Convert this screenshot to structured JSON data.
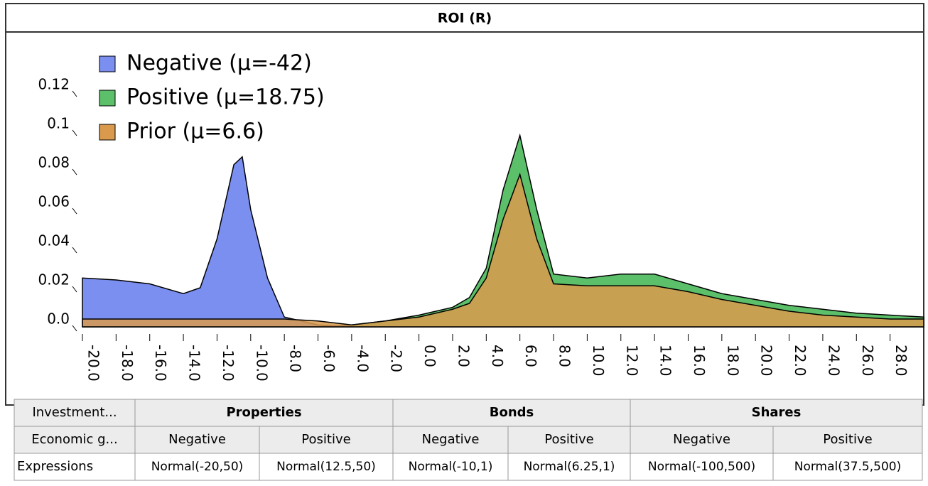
{
  "chart_data": {
    "type": "area",
    "title": "ROI (R)",
    "x": [
      -20,
      -18,
      -16,
      -14,
      -13,
      -12,
      -11,
      -10.5,
      -10,
      -9,
      -8,
      -6,
      -4,
      -2,
      0,
      2,
      3,
      4,
      5,
      6,
      7,
      8,
      10,
      12,
      14,
      16,
      18,
      20,
      22,
      24,
      26,
      28,
      30
    ],
    "series": [
      {
        "name": "Negative (μ=-42)",
        "color": "#7b8ff0",
        "values": [
          0.025,
          0.024,
          0.022,
          0.017,
          0.02,
          0.045,
          0.083,
          0.087,
          0.06,
          0.025,
          0.005,
          0.001,
          0,
          0,
          0,
          0,
          0,
          0,
          0,
          0,
          0,
          0,
          0,
          0,
          0,
          0,
          0,
          0,
          0,
          0,
          0,
          0,
          0
        ]
      },
      {
        "name": "Positive (μ=18.75)",
        "color": "#5cbf6a",
        "values": [
          0,
          0,
          0,
          0,
          0,
          0,
          0,
          0,
          0,
          0,
          0,
          0,
          0.001,
          0.003,
          0.006,
          0.01,
          0.015,
          0.03,
          0.07,
          0.098,
          0.06,
          0.027,
          0.025,
          0.027,
          0.027,
          0.022,
          0.017,
          0.014,
          0.011,
          0.009,
          0.007,
          0.006,
          0.005
        ]
      },
      {
        "name": "Prior (μ=6.6)",
        "color": "#d99a4e",
        "values": [
          0.004,
          0.004,
          0.004,
          0.004,
          0.004,
          0.004,
          0.004,
          0.004,
          0.004,
          0.004,
          0.004,
          0.003,
          0.001,
          0.003,
          0.005,
          0.009,
          0.012,
          0.025,
          0.055,
          0.078,
          0.045,
          0.022,
          0.021,
          0.021,
          0.021,
          0.018,
          0.014,
          0.011,
          0.008,
          0.006,
          0.005,
          0.004,
          0.004
        ]
      }
    ],
    "xlim": [
      -20,
      30
    ],
    "ylim": [
      0,
      0.15
    ],
    "xticks": [
      {
        "value": -20,
        "label": "-20.0"
      },
      {
        "value": -18,
        "label": "-18.0"
      },
      {
        "value": -16,
        "label": "-16.0"
      },
      {
        "value": -14,
        "label": "-14.0"
      },
      {
        "value": -12,
        "label": "-12.0"
      },
      {
        "value": -10,
        "label": "-10.0"
      },
      {
        "value": -8,
        "label": "-8.0"
      },
      {
        "value": -6,
        "label": "-6.0"
      },
      {
        "value": -4,
        "label": "-4.0"
      },
      {
        "value": -2,
        "label": "-2.0"
      },
      {
        "value": 0,
        "label": "0.0"
      },
      {
        "value": 2,
        "label": "2.0"
      },
      {
        "value": 4,
        "label": "4.0"
      },
      {
        "value": 6,
        "label": "6.0"
      },
      {
        "value": 8,
        "label": "8.0"
      },
      {
        "value": 10,
        "label": "10.0"
      },
      {
        "value": 12,
        "label": "12.0"
      },
      {
        "value": 14,
        "label": "14.0"
      },
      {
        "value": 16,
        "label": "16.0"
      },
      {
        "value": 18,
        "label": "18.0"
      },
      {
        "value": 20,
        "label": "20.0"
      },
      {
        "value": 22,
        "label": "22.0"
      },
      {
        "value": 24,
        "label": "24.0"
      },
      {
        "value": 26,
        "label": "26.0"
      },
      {
        "value": 28,
        "label": "28.0"
      }
    ],
    "yticks": [
      {
        "value": 0,
        "label": "0.0"
      },
      0.02,
      0.04,
      0.06,
      0.08,
      0.1,
      0.12
    ],
    "legend": "upper left"
  },
  "table": {
    "rows": [
      [
        {
          "text": "Investment...",
          "span": 1
        },
        {
          "text": "Properties",
          "span": 2
        },
        {
          "text": "Bonds",
          "span": 2
        },
        {
          "text": "Shares",
          "span": 2
        }
      ],
      [
        {
          "text": "Economic g...",
          "span": 1
        },
        {
          "text": "Negative",
          "span": 1
        },
        {
          "text": "Positive",
          "span": 1
        },
        {
          "text": "Negative",
          "span": 1
        },
        {
          "text": "Positive",
          "span": 1
        },
        {
          "text": "Negative",
          "span": 1
        },
        {
          "text": "Positive",
          "span": 1
        }
      ],
      [
        {
          "text": "Expressions",
          "span": 1
        },
        {
          "text": "Normal(-20,50)",
          "span": 1
        },
        {
          "text": "Normal(12.5,50)",
          "span": 1
        },
        {
          "text": "Normal(-10,1)",
          "span": 1
        },
        {
          "text": "Normal(6.25,1)",
          "span": 1
        },
        {
          "text": "Normal(-100,500)",
          "span": 1
        },
        {
          "text": "Normal(37.5,500)",
          "span": 1
        }
      ]
    ]
  }
}
